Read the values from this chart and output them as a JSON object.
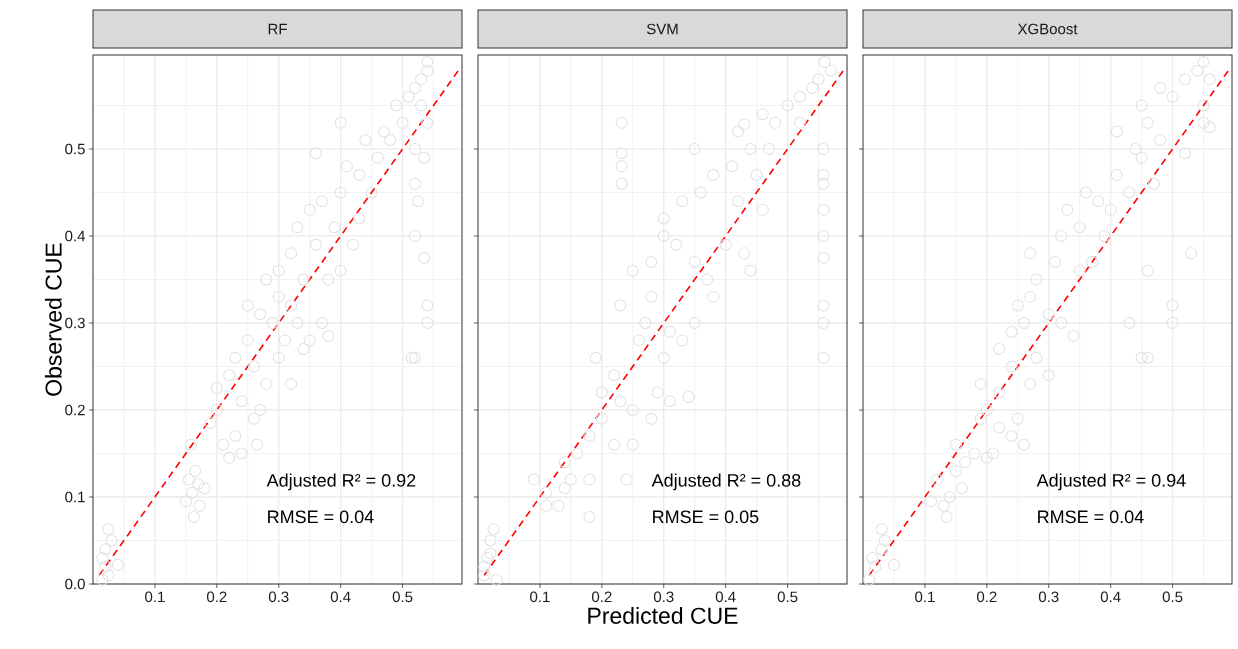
{
  "chart_data": [
    {
      "type": "scatter",
      "title": "RF",
      "ylabel": "Observed CUE",
      "xlim": [
        0,
        0.596
      ],
      "ylim": [
        0,
        0.608
      ],
      "xticks": [
        0.1,
        0.2,
        0.3,
        0.4,
        0.5
      ],
      "yticks": [
        {
          "value": 0,
          "label": "0.0"
        },
        0.1,
        0.2,
        0.3,
        0.4,
        0.5
      ],
      "grid": true,
      "annotations": [
        "Adjusted R² = 0.92",
        "RMSE = 0.04"
      ],
      "series": [
        {
          "marker": "circle",
          "color": "#e0e0e0",
          "x": [
            0.015,
            0.02,
            0.02,
            0.025,
            0.03,
            0.04,
            0.015,
            0.025,
            0.15,
            0.155,
            0.16,
            0.165,
            0.17,
            0.163,
            0.172,
            0.18,
            0.158,
            0.19,
            0.2,
            0.21,
            0.22,
            0.23,
            0.24,
            0.2,
            0.22,
            0.24,
            0.26,
            0.265,
            0.27,
            0.23,
            0.25,
            0.26,
            0.28,
            0.29,
            0.25,
            0.27,
            0.3,
            0.32,
            0.31,
            0.3,
            0.28,
            0.3,
            0.32,
            0.33,
            0.34,
            0.35,
            0.37,
            0.38,
            0.34,
            0.32,
            0.33,
            0.35,
            0.36,
            0.38,
            0.4,
            0.39,
            0.37,
            0.4,
            0.42,
            0.43,
            0.41,
            0.43,
            0.45,
            0.46,
            0.44,
            0.47,
            0.4,
            0.36,
            0.49,
            0.48,
            0.5,
            0.51,
            0.52,
            0.53,
            0.54,
            0.54,
            0.53,
            0.54,
            0.52,
            0.535,
            0.52,
            0.525,
            0.52,
            0.535,
            0.54,
            0.54,
            0.515,
            0.52
          ],
          "values": [
            0.005,
            0.02,
            0.04,
            0.063,
            0.05,
            0.022,
            0.03,
            0.01,
            0.095,
            0.12,
            0.105,
            0.13,
            0.115,
            0.077,
            0.09,
            0.11,
            0.16,
            0.185,
            0.2,
            0.16,
            0.145,
            0.17,
            0.15,
            0.225,
            0.24,
            0.21,
            0.19,
            0.16,
            0.2,
            0.26,
            0.28,
            0.25,
            0.23,
            0.3,
            0.32,
            0.31,
            0.26,
            0.23,
            0.28,
            0.33,
            0.35,
            0.36,
            0.32,
            0.3,
            0.27,
            0.28,
            0.3,
            0.285,
            0.35,
            0.38,
            0.41,
            0.43,
            0.39,
            0.35,
            0.36,
            0.41,
            0.44,
            0.45,
            0.39,
            0.42,
            0.48,
            0.47,
            0.45,
            0.49,
            0.51,
            0.52,
            0.53,
            0.495,
            0.55,
            0.51,
            0.53,
            0.56,
            0.57,
            0.58,
            0.59,
            0.6,
            0.55,
            0.53,
            0.5,
            0.49,
            0.46,
            0.44,
            0.4,
            0.375,
            0.32,
            0.3,
            0.26,
            0.26
          ]
        },
        {
          "type": "line",
          "line_style": "dashed",
          "marker": "none",
          "color": "#ff0000",
          "x": [
            0.01,
            0.59
          ],
          "values": [
            0.01,
            0.59
          ]
        }
      ]
    },
    {
      "type": "scatter",
      "title": "SVM",
      "xlabel": "Predicted CUE",
      "xlim": [
        0,
        0.596
      ],
      "ylim": [
        0,
        0.608
      ],
      "xticks": [
        0.1,
        0.2,
        0.3,
        0.4,
        0.5
      ],
      "yticks": [
        0,
        0.1,
        0.2,
        0.3,
        0.4,
        0.5
      ],
      "tick_labels": "x",
      "grid": true,
      "annotations": [
        "Adjusted R² = 0.88",
        "RMSE = 0.05"
      ],
      "series": [
        {
          "marker": "circle",
          "color": "#e0e0e0",
          "x": [
            0.01,
            0.015,
            0.02,
            0.025,
            0.01,
            0.03,
            0.02,
            0.09,
            0.11,
            0.11,
            0.13,
            0.14,
            0.15,
            0.18,
            0.18,
            0.24,
            0.14,
            0.16,
            0.18,
            0.2,
            0.22,
            0.25,
            0.2,
            0.22,
            0.19,
            0.23,
            0.25,
            0.28,
            0.29,
            0.31,
            0.34,
            0.26,
            0.27,
            0.23,
            0.28,
            0.3,
            0.31,
            0.33,
            0.35,
            0.25,
            0.28,
            0.3,
            0.3,
            0.32,
            0.33,
            0.36,
            0.35,
            0.37,
            0.4,
            0.38,
            0.43,
            0.44,
            0.38,
            0.42,
            0.41,
            0.42,
            0.44,
            0.45,
            0.46,
            0.47,
            0.48,
            0.46,
            0.5,
            0.52,
            0.54,
            0.55,
            0.56,
            0.57,
            0.35,
            0.43,
            0.52,
            0.232,
            0.232,
            0.232,
            0.232,
            0.558,
            0.558,
            0.558,
            0.558,
            0.558,
            0.558,
            0.558,
            0.558,
            0.558
          ],
          "values": [
            0.01,
            0.03,
            0.05,
            0.063,
            0.02,
            0.005,
            0.035,
            0.12,
            0.105,
            0.09,
            0.09,
            0.11,
            0.12,
            0.12,
            0.077,
            0.12,
            0.14,
            0.15,
            0.17,
            0.19,
            0.16,
            0.16,
            0.22,
            0.24,
            0.26,
            0.21,
            0.2,
            0.19,
            0.22,
            0.21,
            0.215,
            0.28,
            0.3,
            0.32,
            0.33,
            0.26,
            0.29,
            0.28,
            0.3,
            0.36,
            0.37,
            0.4,
            0.42,
            0.39,
            0.44,
            0.45,
            0.37,
            0.35,
            0.39,
            0.33,
            0.38,
            0.36,
            0.47,
            0.44,
            0.48,
            0.52,
            0.5,
            0.47,
            0.43,
            0.5,
            0.53,
            0.54,
            0.55,
            0.56,
            0.57,
            0.58,
            0.6,
            0.59,
            0.5,
            0.528,
            0.53,
            0.53,
            0.495,
            0.48,
            0.46,
            0.5,
            0.47,
            0.46,
            0.43,
            0.4,
            0.375,
            0.32,
            0.3,
            0.26
          ]
        },
        {
          "type": "line",
          "line_style": "dashed",
          "marker": "none",
          "color": "#ff0000",
          "x": [
            0.01,
            0.59
          ],
          "values": [
            0.01,
            0.59
          ]
        }
      ]
    },
    {
      "type": "scatter",
      "title": "XGBoost",
      "xlim": [
        0,
        0.596
      ],
      "ylim": [
        0,
        0.608
      ],
      "xticks": [
        0.1,
        0.2,
        0.3,
        0.4,
        0.5
      ],
      "yticks": [
        0,
        0.1,
        0.2,
        0.3,
        0.4,
        0.5
      ],
      "tick_labels": "x",
      "grid": true,
      "annotations": [
        "Adjusted R² = 0.94",
        "RMSE = 0.04"
      ],
      "series": [
        {
          "marker": "circle",
          "color": "#e0e0e0",
          "x": [
            0.01,
            0.02,
            0.03,
            0.03,
            0.035,
            0.05,
            0.015,
            0.11,
            0.13,
            0.135,
            0.14,
            0.12,
            0.15,
            0.16,
            0.165,
            0.15,
            0.18,
            0.2,
            0.21,
            0.19,
            0.2,
            0.22,
            0.24,
            0.26,
            0.19,
            0.22,
            0.24,
            0.25,
            0.27,
            0.22,
            0.24,
            0.26,
            0.28,
            0.3,
            0.25,
            0.27,
            0.28,
            0.3,
            0.32,
            0.34,
            0.27,
            0.31,
            0.32,
            0.33,
            0.35,
            0.35,
            0.37,
            0.36,
            0.38,
            0.4,
            0.39,
            0.41,
            0.43,
            0.41,
            0.44,
            0.45,
            0.46,
            0.48,
            0.45,
            0.48,
            0.5,
            0.52,
            0.54,
            0.55,
            0.56,
            0.55,
            0.56,
            0.52,
            0.47,
            0.43,
            0.46,
            0.5,
            0.5,
            0.45,
            0.46,
            0.53,
            0.55
          ],
          "values": [
            0.005,
            0.02,
            0.04,
            0.063,
            0.05,
            0.022,
            0.03,
            0.095,
            0.09,
            0.077,
            0.1,
            0.12,
            0.13,
            0.11,
            0.14,
            0.16,
            0.15,
            0.145,
            0.15,
            0.19,
            0.2,
            0.18,
            0.17,
            0.16,
            0.23,
            0.22,
            0.25,
            0.19,
            0.23,
            0.27,
            0.29,
            0.3,
            0.26,
            0.24,
            0.32,
            0.33,
            0.35,
            0.31,
            0.3,
            0.285,
            0.38,
            0.37,
            0.4,
            0.43,
            0.41,
            0.36,
            0.37,
            0.45,
            0.44,
            0.43,
            0.4,
            0.47,
            0.45,
            0.52,
            0.5,
            0.49,
            0.53,
            0.51,
            0.55,
            0.57,
            0.56,
            0.58,
            0.59,
            0.6,
            0.58,
            0.55,
            0.525,
            0.495,
            0.46,
            0.3,
            0.36,
            0.32,
            0.3,
            0.26,
            0.26,
            0.38,
            0.53
          ]
        },
        {
          "type": "line",
          "line_style": "dashed",
          "marker": "none",
          "color": "#ff0000",
          "x": [
            0.01,
            0.59
          ],
          "values": [
            0.01,
            0.59
          ]
        }
      ]
    }
  ]
}
